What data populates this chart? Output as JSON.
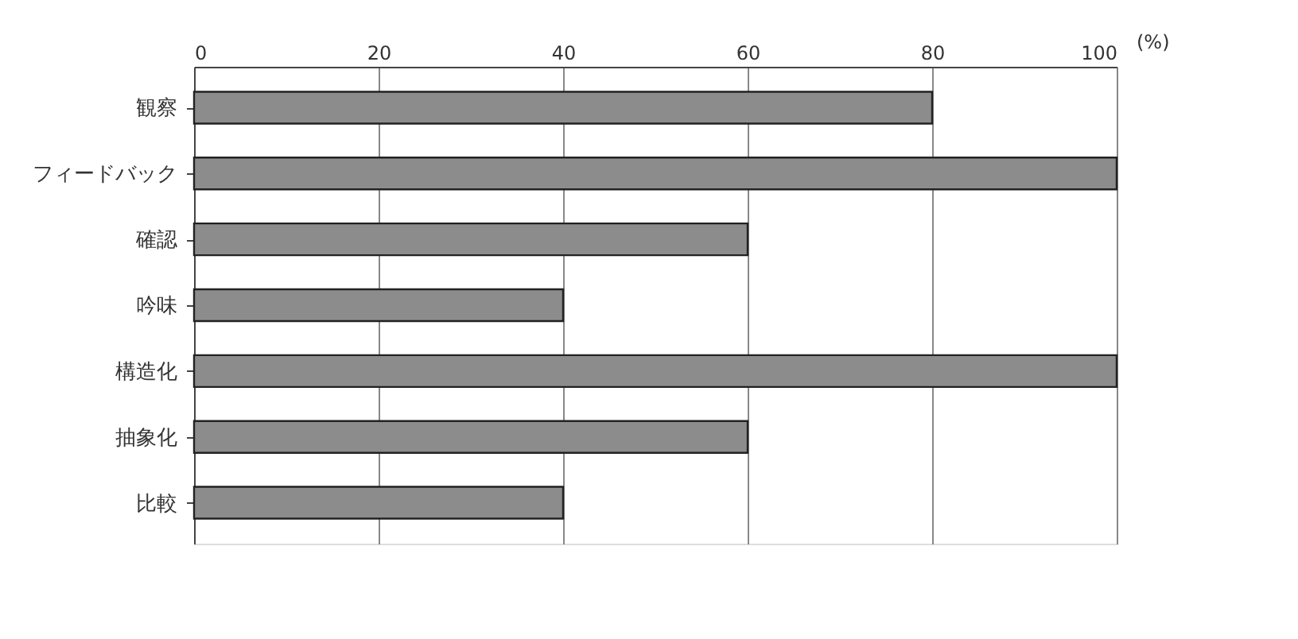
{
  "chart_data": {
    "type": "bar",
    "orientation": "horizontal",
    "xlabel": "(%)",
    "categories": [
      "観察",
      "フィードバック",
      "確認",
      "吟味",
      "構造化",
      "抽象化",
      "比較"
    ],
    "values": [
      80,
      100,
      60,
      40,
      100,
      60,
      40
    ],
    "color": "#8c8c8c",
    "xlim": [
      0,
      100
    ],
    "xticks": [
      0,
      20,
      40,
      60,
      80,
      100
    ],
    "grid": "x"
  }
}
